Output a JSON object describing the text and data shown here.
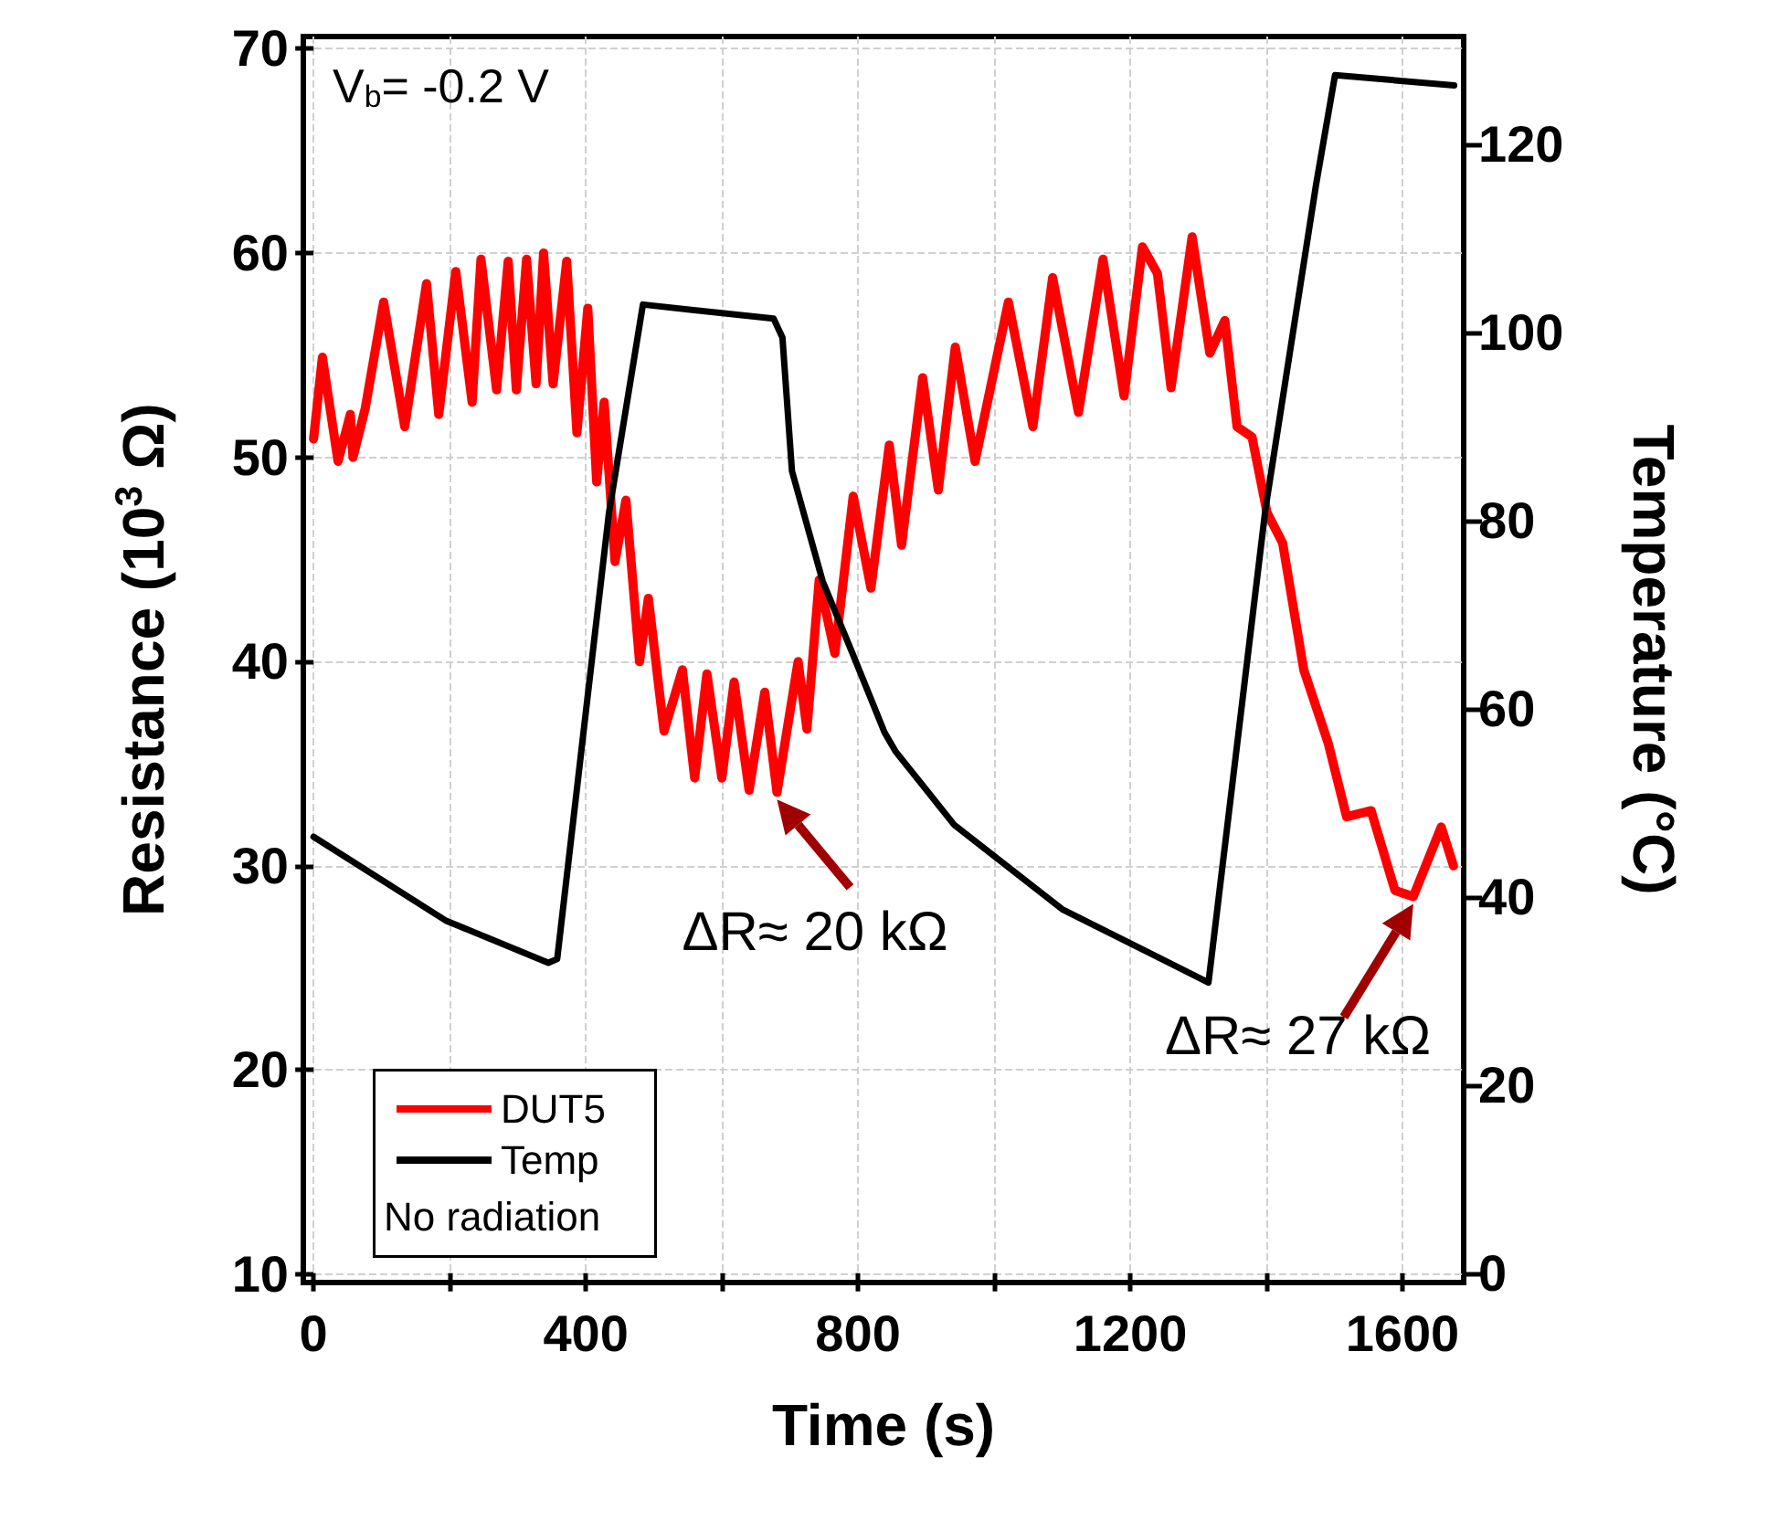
{
  "chart_data": {
    "type": "line",
    "xlabel": "Time (s)",
    "ylabel": "Resistance (10$^{3}$ Ω)",
    "y2label": "Temperature (°C)",
    "legend_title": "No radiation",
    "xlim": [
      -15,
      1690
    ],
    "xticks": [
      0,
      {
        "value": 200,
        "label": null
      },
      400,
      {
        "value": 600,
        "label": null
      },
      800,
      {
        "value": 1000,
        "label": null
      },
      1200,
      {
        "value": 1400,
        "label": null
      },
      1600
    ],
    "ylim": [
      9.6,
      70.6
    ],
    "yticks": [
      10,
      20,
      30,
      40,
      50,
      60,
      70
    ],
    "y2lim": [
      -1,
      131.5
    ],
    "y2ticks": [
      0,
      20,
      40,
      60,
      80,
      100,
      120
    ],
    "grid": true,
    "legend": "bottom left",
    "annotations": [
      "V$_{b}$= -0.2 V",
      {
        "text": "ΔR≈ 20 kΩ",
        "x": 681,
        "y": 33.6
      },
      {
        "text": "ΔR≈ 27 kΩ",
        "x": 1616,
        "y": 28.5
      }
    ],
    "series": [
      {
        "name": "DUT5",
        "color": "#ff0000",
        "x": [
          0,
          13,
          36,
          54,
          58,
          76,
          103,
          134,
          166,
          184,
          209,
          233,
          246,
          269,
          286,
          298,
          313,
          327,
          338,
          352,
          372,
          387,
          403,
          416,
          427,
          443,
          459,
          479,
          492,
          515,
          542,
          560,
          578,
          600,
          618,
          640,
          663,
          681,
          712,
          725,
          743,
          766,
          793,
          819,
          846,
          864,
          895,
          918,
          943,
          972,
          1021,
          1057,
          1086,
          1124,
          1160,
          1191,
          1218,
          1240,
          1260,
          1291,
          1317,
          1339,
          1357,
          1379,
          1401,
          1424,
          1455,
          1491,
          1518,
          1554,
          1589,
          1616,
          1657,
          1675
        ],
        "values": [
          50.9,
          54.9,
          49.8,
          52.1,
          50.0,
          52.4,
          57.6,
          51.5,
          58.5,
          52.1,
          59.1,
          52.7,
          59.7,
          53.3,
          59.6,
          53.3,
          59.7,
          53.6,
          60,
          53.6,
          59.6,
          51.2,
          57.3,
          48.8,
          52.7,
          44.9,
          47.9,
          40,
          43.1,
          36.6,
          39.6,
          34.3,
          39.4,
          34.3,
          39.0,
          33.7,
          38.5,
          33.6,
          40,
          36.7,
          44,
          40.4,
          48.1,
          43.6,
          50.6,
          45.7,
          53.9,
          48.4,
          55.4,
          49.8,
          57.6,
          51.5,
          58.8,
          52.2,
          59.7,
          53.0,
          60.3,
          59,
          53.4,
          60.8,
          55.1,
          56.7,
          51.5,
          51.0,
          47.3,
          45.8,
          39.6,
          36,
          32.4,
          32.7,
          28.8,
          28.5,
          31.9,
          30
        ]
      },
      {
        "name": "Temp",
        "color": "#000000",
        "axis": "y2",
        "x": [
          0,
          194,
          345,
          358,
          434,
          484,
          676,
          689,
          703,
          748,
          792,
          839,
          855,
          941,
          1100,
          1315,
          1399,
          1473,
          1501,
          1676
        ],
        "values": [
          46.4,
          37.5,
          33,
          33.4,
          80.8,
          103,
          101.5,
          99.5,
          85.3,
          73.6,
          65.9,
          57.5,
          55.5,
          47.7,
          38.7,
          30.9,
          81.4,
          115.7,
          127.4,
          126.3
        ]
      }
    ]
  }
}
